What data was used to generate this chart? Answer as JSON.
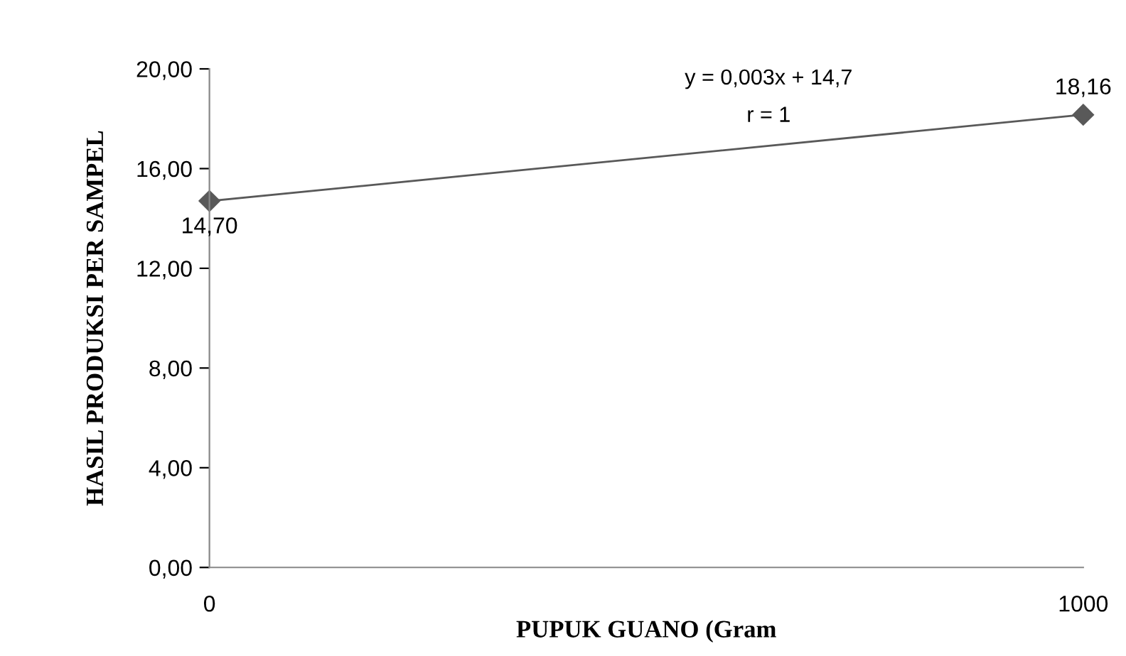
{
  "chart_data": {
    "type": "line",
    "xlabel": "PUPUK GUANO (Gram",
    "ylabel": "HASIL PRODUKSI PER SAMPEL",
    "x": [
      0,
      1000
    ],
    "series": [
      {
        "color": "#595959",
        "values": [
          14.7,
          18.16
        ],
        "value_labels": [
          "14,70",
          "18,16"
        ]
      }
    ],
    "xlim": [
      0,
      1000
    ],
    "xticks": [
      0,
      1000
    ],
    "ylim": [
      0,
      20
    ],
    "yticks": [
      {
        "value": 0,
        "label": "0,00"
      },
      {
        "value": 4,
        "label": "4,00"
      },
      {
        "value": 8,
        "label": "8,00"
      },
      {
        "value": 12,
        "label": "12,00"
      },
      {
        "value": 16,
        "label": "16,00"
      },
      {
        "value": 20,
        "label": "20,00"
      }
    ],
    "annotations": [
      "y = 0,003x + 14,7",
      "r = 1"
    ],
    "marker": "diamond",
    "line_style": "solid",
    "grid": false,
    "legend": false
  }
}
